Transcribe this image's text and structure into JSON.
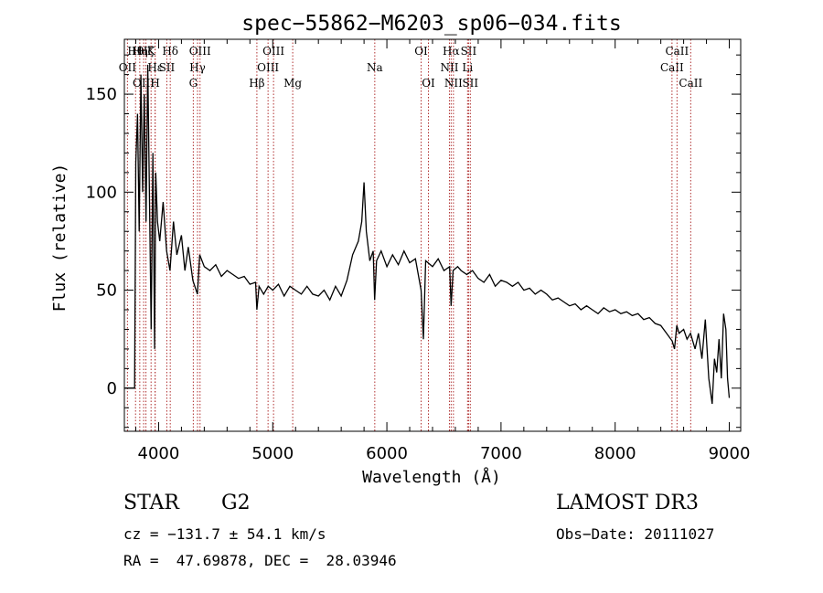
{
  "chart_data": {
    "type": "line",
    "title": "spec−55862−M6203_sp06−034.fits",
    "xlabel": "Wavelength (Å)",
    "ylabel": "Flux (relative)",
    "xlim": [
      3700,
      9100
    ],
    "ylim": [
      -22,
      178
    ],
    "xticks": [
      4000,
      5000,
      6000,
      7000,
      8000,
      9000
    ],
    "yticks": [
      0,
      50,
      100,
      150
    ],
    "xtick_labels": [
      "4000",
      "5000",
      "6000",
      "7000",
      "8000",
      "9000"
    ],
    "ytick_labels": [
      "0",
      "50",
      "100",
      "150"
    ],
    "spectrum": [
      [
        3700,
        0
      ],
      [
        3790,
        0
      ],
      [
        3800,
        115
      ],
      [
        3815,
        140
      ],
      [
        3830,
        80
      ],
      [
        3845,
        160
      ],
      [
        3860,
        100
      ],
      [
        3875,
        150
      ],
      [
        3890,
        85
      ],
      [
        3905,
        165
      ],
      [
        3920,
        95
      ],
      [
        3935,
        30
      ],
      [
        3950,
        120
      ],
      [
        3965,
        20
      ],
      [
        3975,
        110
      ],
      [
        3990,
        85
      ],
      [
        4010,
        75
      ],
      [
        4040,
        95
      ],
      [
        4070,
        70
      ],
      [
        4100,
        60
      ],
      [
        4130,
        85
      ],
      [
        4160,
        68
      ],
      [
        4200,
        78
      ],
      [
        4230,
        60
      ],
      [
        4260,
        72
      ],
      [
        4300,
        55
      ],
      [
        4340,
        48
      ],
      [
        4360,
        68
      ],
      [
        4400,
        62
      ],
      [
        4450,
        60
      ],
      [
        4500,
        63
      ],
      [
        4550,
        57
      ],
      [
        4600,
        60
      ],
      [
        4650,
        58
      ],
      [
        4700,
        56
      ],
      [
        4750,
        57
      ],
      [
        4800,
        53
      ],
      [
        4850,
        54
      ],
      [
        4861,
        40
      ],
      [
        4880,
        52
      ],
      [
        4920,
        48
      ],
      [
        4960,
        52
      ],
      [
        5000,
        50
      ],
      [
        5050,
        53
      ],
      [
        5100,
        47
      ],
      [
        5150,
        52
      ],
      [
        5200,
        50
      ],
      [
        5250,
        48
      ],
      [
        5300,
        52
      ],
      [
        5350,
        48
      ],
      [
        5400,
        47
      ],
      [
        5450,
        50
      ],
      [
        5500,
        45
      ],
      [
        5550,
        52
      ],
      [
        5600,
        47
      ],
      [
        5650,
        55
      ],
      [
        5700,
        68
      ],
      [
        5750,
        75
      ],
      [
        5780,
        85
      ],
      [
        5800,
        105
      ],
      [
        5820,
        80
      ],
      [
        5850,
        65
      ],
      [
        5880,
        70
      ],
      [
        5893,
        45
      ],
      [
        5910,
        65
      ],
      [
        5950,
        70
      ],
      [
        6000,
        62
      ],
      [
        6050,
        68
      ],
      [
        6100,
        63
      ],
      [
        6150,
        70
      ],
      [
        6200,
        64
      ],
      [
        6250,
        66
      ],
      [
        6300,
        50
      ],
      [
        6320,
        25
      ],
      [
        6340,
        65
      ],
      [
        6400,
        62
      ],
      [
        6450,
        66
      ],
      [
        6500,
        60
      ],
      [
        6550,
        62
      ],
      [
        6563,
        42
      ],
      [
        6580,
        60
      ],
      [
        6620,
        62
      ],
      [
        6650,
        60
      ],
      [
        6700,
        58
      ],
      [
        6750,
        60
      ],
      [
        6800,
        56
      ],
      [
        6850,
        54
      ],
      [
        6900,
        58
      ],
      [
        6950,
        52
      ],
      [
        7000,
        55
      ],
      [
        7050,
        54
      ],
      [
        7100,
        52
      ],
      [
        7150,
        54
      ],
      [
        7200,
        50
      ],
      [
        7250,
        51
      ],
      [
        7300,
        48
      ],
      [
        7350,
        50
      ],
      [
        7400,
        48
      ],
      [
        7450,
        45
      ],
      [
        7500,
        46
      ],
      [
        7550,
        44
      ],
      [
        7600,
        42
      ],
      [
        7650,
        43
      ],
      [
        7700,
        40
      ],
      [
        7750,
        42
      ],
      [
        7800,
        40
      ],
      [
        7850,
        38
      ],
      [
        7900,
        41
      ],
      [
        7950,
        39
      ],
      [
        8000,
        40
      ],
      [
        8050,
        38
      ],
      [
        8100,
        39
      ],
      [
        8150,
        37
      ],
      [
        8200,
        38
      ],
      [
        8250,
        35
      ],
      [
        8300,
        36
      ],
      [
        8350,
        33
      ],
      [
        8400,
        32
      ],
      [
        8450,
        28
      ],
      [
        8500,
        24
      ],
      [
        8520,
        20
      ],
      [
        8540,
        32
      ],
      [
        8560,
        28
      ],
      [
        8600,
        30
      ],
      [
        8630,
        25
      ],
      [
        8660,
        28
      ],
      [
        8700,
        20
      ],
      [
        8730,
        28
      ],
      [
        8760,
        15
      ],
      [
        8790,
        35
      ],
      [
        8820,
        5
      ],
      [
        8850,
        -8
      ],
      [
        8870,
        15
      ],
      [
        8890,
        8
      ],
      [
        8910,
        25
      ],
      [
        8930,
        5
      ],
      [
        8950,
        38
      ],
      [
        8970,
        30
      ],
      [
        8985,
        5
      ],
      [
        9000,
        -5
      ]
    ],
    "lines": [
      {
        "wl": 3727,
        "label": "OII",
        "row": 1
      },
      {
        "wl": 3798,
        "label": "Hθ",
        "row": 0
      },
      {
        "wl": 3835,
        "label": "Hη",
        "row": 0
      },
      {
        "wl": 3869,
        "label": "OIII",
        "row": 2
      },
      {
        "wl": 3889,
        "label": "Hζ",
        "row": 0
      },
      {
        "wl": 3934,
        "label": "K",
        "row": 0
      },
      {
        "wl": 3969,
        "label": "H",
        "row": 2
      },
      {
        "wl": 3970,
        "label": "Hε",
        "row": 1
      },
      {
        "wl": 4072,
        "label": "SII",
        "row": 1
      },
      {
        "wl": 4102,
        "label": "Hδ",
        "row": 0
      },
      {
        "wl": 4304,
        "label": "G",
        "row": 2
      },
      {
        "wl": 4341,
        "label": "Hγ",
        "row": 1
      },
      {
        "wl": 4363,
        "label": "OIII",
        "row": 0
      },
      {
        "wl": 4861,
        "label": "Hβ",
        "row": 2
      },
      {
        "wl": 4959,
        "label": "OIII",
        "row": 1
      },
      {
        "wl": 5007,
        "label": "OIII",
        "row": 0
      },
      {
        "wl": 5175,
        "label": "Mg",
        "row": 2
      },
      {
        "wl": 5894,
        "label": "Na",
        "row": 1
      },
      {
        "wl": 6300,
        "label": "OI",
        "row": 0
      },
      {
        "wl": 6364,
        "label": "OI",
        "row": 2
      },
      {
        "wl": 6548,
        "label": "NII",
        "row": 1
      },
      {
        "wl": 6563,
        "label": "Hα",
        "row": 0
      },
      {
        "wl": 6583,
        "label": "NII",
        "row": 2
      },
      {
        "wl": 6707,
        "label": "Li",
        "row": 1
      },
      {
        "wl": 6716,
        "label": "SII",
        "row": 0
      },
      {
        "wl": 6731,
        "label": "SII",
        "row": 2
      },
      {
        "wl": 8498,
        "label": "CaII",
        "row": 1
      },
      {
        "wl": 8542,
        "label": "CaII",
        "row": 0
      },
      {
        "wl": 8662,
        "label": "CaII",
        "row": 2
      }
    ]
  },
  "info": {
    "class": "STAR",
    "subclass": "G2",
    "survey": "LAMOST DR3",
    "redshift": "cz = −131.7 ± 54.1 km/s",
    "obs_date": "Obs−Date: 20111027",
    "coords": "RA =  47.69878, DEC =  28.03946"
  }
}
